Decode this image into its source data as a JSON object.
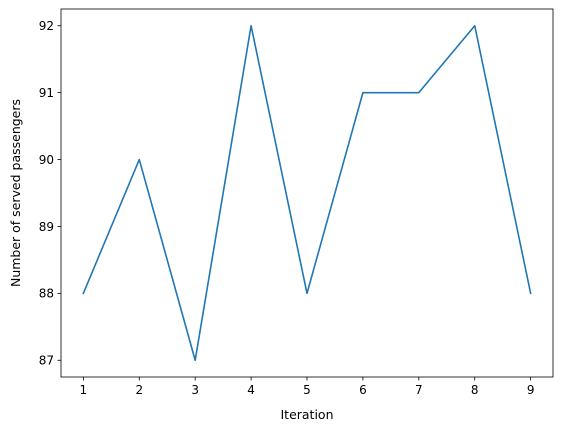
{
  "chart_data": {
    "type": "line",
    "title": "",
    "xlabel": "Iteration",
    "ylabel": "Number of served passengers",
    "x": [
      1,
      2,
      3,
      4,
      5,
      6,
      7,
      8,
      9
    ],
    "series": [
      {
        "values": [
          88,
          90,
          87,
          92,
          88,
          91,
          91,
          92,
          88
        ],
        "color": "#1f77b4"
      }
    ],
    "xlim": [
      0.6,
      9.4
    ],
    "ylim": [
      86.75,
      92.25
    ],
    "xticks": [
      1,
      2,
      3,
      4,
      5,
      6,
      7,
      8,
      9
    ],
    "yticks": [
      87,
      88,
      89,
      90,
      91,
      92
    ],
    "grid": false,
    "legend": "none"
  }
}
